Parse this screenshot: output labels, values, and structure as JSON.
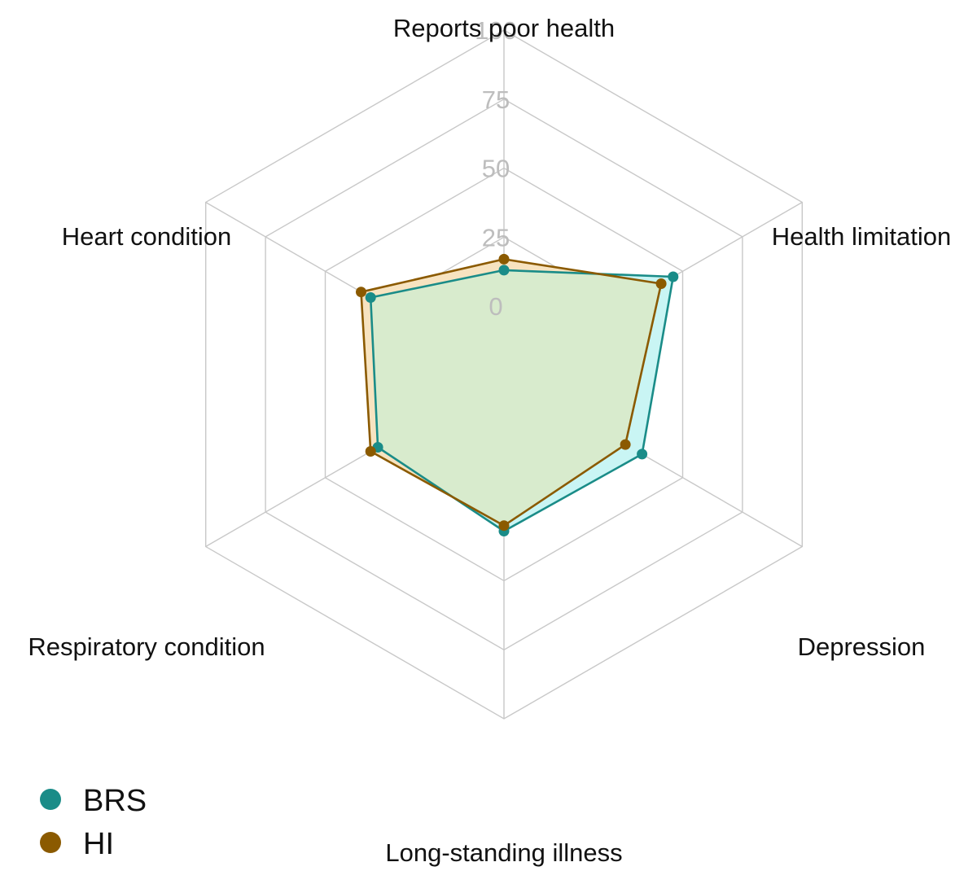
{
  "chart_data": {
    "type": "radar",
    "axes": [
      "Reports poor health",
      "Health limitation",
      "Depression",
      "Long-standing illness",
      "Respiratory condition",
      "Heart condition"
    ],
    "rlim": [
      0,
      100
    ],
    "ticks": [
      "0",
      "25",
      "50",
      "75",
      "100"
    ],
    "tick_values": [
      0,
      25,
      50,
      75,
      100
    ],
    "series": [
      {
        "name": "BRS",
        "values": [
          13,
          46,
          33,
          32,
          28,
          31
        ],
        "color": "#1a8c88",
        "fill": "#c9f5f4"
      },
      {
        "name": "HI",
        "values": [
          17,
          41,
          26,
          30,
          31,
          35
        ],
        "color": "#8b5a00",
        "fill": "#f7e3c0"
      }
    ],
    "overlap_fill": "#d8ebcd",
    "grid_color": "#c8c8c8",
    "legend_position": "bottom-left"
  }
}
